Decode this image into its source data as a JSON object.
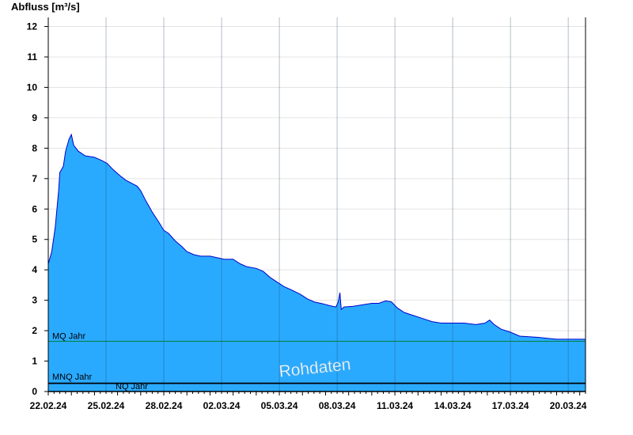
{
  "chart_data": {
    "type": "area",
    "ylabel": "Abfluss [m³/s]",
    "ylim": [
      0,
      12.3
    ],
    "y_ticks": [
      0,
      1,
      2,
      3,
      4,
      5,
      6,
      7,
      8,
      9,
      10,
      11,
      12
    ],
    "x_start": "21.02.24",
    "x_end": "20.03.24 + 1.25",
    "x_ticks": [
      "22.02.24",
      "25.02.24",
      "28.02.24",
      "02.03.24",
      "05.03.24",
      "08.03.24",
      "11.03.24",
      "14.03.24",
      "17.03.24",
      "20.03.24"
    ],
    "grid": true,
    "fill_color": "#2aaaff",
    "line_color": "#0000cc",
    "series": [
      {
        "points_days_from_22_02_24": [
          [
            0.0,
            4.2
          ],
          [
            0.15,
            4.6
          ],
          [
            0.3,
            5.4
          ],
          [
            0.45,
            6.6
          ],
          [
            0.5,
            7.2
          ],
          [
            0.65,
            7.4
          ],
          [
            0.75,
            7.9
          ],
          [
            0.9,
            8.3
          ],
          [
            1.0,
            8.45
          ],
          [
            1.1,
            8.1
          ],
          [
            1.3,
            7.9
          ],
          [
            1.6,
            7.75
          ],
          [
            2.0,
            7.7
          ],
          [
            2.3,
            7.6
          ],
          [
            2.55,
            7.5
          ],
          [
            2.8,
            7.3
          ],
          [
            3.1,
            7.1
          ],
          [
            3.35,
            6.95
          ],
          [
            3.6,
            6.85
          ],
          [
            3.85,
            6.75
          ],
          [
            4.0,
            6.6
          ],
          [
            4.2,
            6.3
          ],
          [
            4.5,
            5.9
          ],
          [
            4.8,
            5.55
          ],
          [
            5.0,
            5.3
          ],
          [
            5.2,
            5.2
          ],
          [
            5.5,
            4.95
          ],
          [
            5.8,
            4.75
          ],
          [
            6.0,
            4.6
          ],
          [
            6.3,
            4.5
          ],
          [
            6.6,
            4.45
          ],
          [
            7.0,
            4.45
          ],
          [
            7.3,
            4.4
          ],
          [
            7.6,
            4.35
          ],
          [
            8.0,
            4.35
          ],
          [
            8.3,
            4.2
          ],
          [
            8.6,
            4.1
          ],
          [
            9.0,
            4.05
          ],
          [
            9.3,
            3.95
          ],
          [
            9.6,
            3.75
          ],
          [
            9.9,
            3.6
          ],
          [
            10.2,
            3.45
          ],
          [
            10.5,
            3.35
          ],
          [
            10.9,
            3.2
          ],
          [
            11.2,
            3.05
          ],
          [
            11.5,
            2.95
          ],
          [
            11.9,
            2.88
          ],
          [
            12.2,
            2.82
          ],
          [
            12.45,
            2.78
          ],
          [
            12.55,
            2.95
          ],
          [
            12.62,
            3.25
          ],
          [
            12.68,
            2.7
          ],
          [
            12.8,
            2.78
          ],
          [
            13.2,
            2.8
          ],
          [
            13.6,
            2.85
          ],
          [
            14.0,
            2.9
          ],
          [
            14.3,
            2.9
          ],
          [
            14.6,
            2.98
          ],
          [
            14.85,
            2.95
          ],
          [
            15.1,
            2.75
          ],
          [
            15.4,
            2.6
          ],
          [
            15.8,
            2.5
          ],
          [
            16.2,
            2.4
          ],
          [
            16.6,
            2.3
          ],
          [
            17.0,
            2.25
          ],
          [
            17.6,
            2.25
          ],
          [
            18.0,
            2.25
          ],
          [
            18.5,
            2.2
          ],
          [
            18.9,
            2.25
          ],
          [
            19.1,
            2.35
          ],
          [
            19.3,
            2.2
          ],
          [
            19.6,
            2.05
          ],
          [
            20.0,
            1.95
          ],
          [
            20.4,
            1.82
          ],
          [
            20.8,
            1.8
          ],
          [
            21.2,
            1.78
          ],
          [
            21.6,
            1.75
          ],
          [
            22.0,
            1.72
          ],
          [
            22.5,
            1.72
          ],
          [
            23.0,
            1.72
          ],
          [
            23.25,
            1.72
          ]
        ]
      }
    ],
    "reference_lines": [
      {
        "label": "MQ Jahr",
        "value": 1.65,
        "color": "#007f3f"
      },
      {
        "label": "MNQ Jahr",
        "value": 0.28,
        "color": "#000000"
      },
      {
        "label": "NQ Jahr",
        "value": 0.26,
        "color": "#000000"
      }
    ],
    "watermark": "Rohdaten"
  }
}
